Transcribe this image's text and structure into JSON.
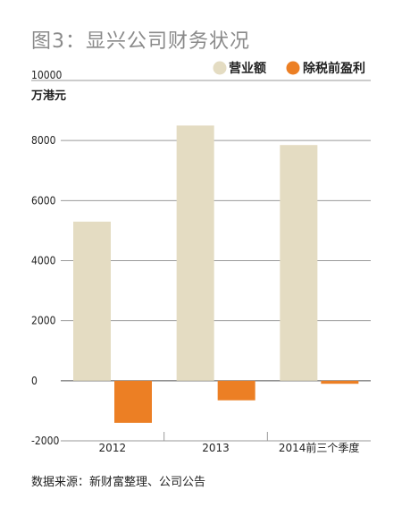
{
  "chart_data": {
    "type": "bar",
    "title": "图3：显兴公司财务状况",
    "ylabel": "万港元",
    "ylim": [
      -2000,
      10000
    ],
    "yticks": [
      -2000,
      0,
      2000,
      4000,
      6000,
      8000,
      10000
    ],
    "categories": [
      "2012",
      "2013",
      "2014前三个季度"
    ],
    "series": [
      {
        "name": "营业额",
        "values": [
          5300,
          8500,
          7850
        ],
        "color": "#e4dcc2"
      },
      {
        "name": "除税前盈利",
        "values": [
          -1400,
          -650,
          -100
        ],
        "color": "#ec7f24"
      }
    ],
    "grid": true,
    "legend": "top-right",
    "source": "数据来源：新财富整理、公司公告"
  }
}
